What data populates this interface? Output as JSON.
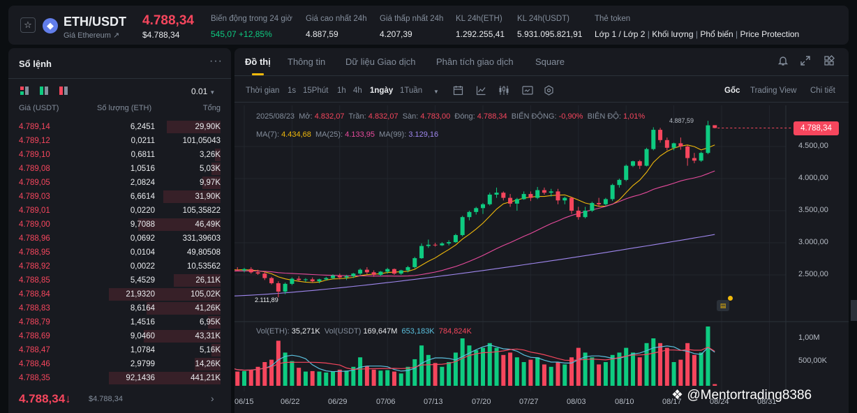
{
  "header": {
    "pair": "ETH/USDT",
    "subtitle": "Giá Ethereum ↗",
    "last_price": "4.788,34",
    "last_price_usd": "$4.788,34",
    "stats": [
      {
        "label": "Biến động trong 24 giờ",
        "value": "545,07 +12,85%",
        "up": true
      },
      {
        "label": "Giá cao nhất 24h",
        "value": "4.887,59"
      },
      {
        "label": "Giá thấp nhất 24h",
        "value": "4.207,39"
      },
      {
        "label": "KL 24h(ETH)",
        "value": "1.292.255,41"
      },
      {
        "label": "KL 24h(USDT)",
        "value": "5.931.095.821,91"
      }
    ],
    "tags_label": "Thẻ token",
    "tags": [
      "Lớp 1 / Lớp 2",
      "Khối lượng",
      "Phổ biến",
      "Price Protection"
    ]
  },
  "orderbook": {
    "title": "Sổ lệnh",
    "step": "0.01",
    "col_price": "Giá (USDT)",
    "col_qty": "Số lượng (ETH)",
    "col_total": "Tổng",
    "rows": [
      {
        "price": "4.789,14",
        "qty": "6,2451",
        "total": "29,90K",
        "depth": 0.48
      },
      {
        "price": "4.789,12",
        "qty": "0,0211",
        "total": "101,05043",
        "depth": 0.0
      },
      {
        "price": "4.789,10",
        "qty": "0,6811",
        "total": "3,26K",
        "depth": 0.05
      },
      {
        "price": "4.789,08",
        "qty": "1,0516",
        "total": "5,03K",
        "depth": 0.08
      },
      {
        "price": "4.789,05",
        "qty": "2,0824",
        "total": "9,97K",
        "depth": 0.16
      },
      {
        "price": "4.789,03",
        "qty": "6,6614",
        "total": "31,90K",
        "depth": 0.51
      },
      {
        "price": "4.789,01",
        "qty": "0,0220",
        "total": "105,35822",
        "depth": 0.0
      },
      {
        "price": "4.789,00",
        "qty": "9,7088",
        "total": "46,49K",
        "depth": 0.74
      },
      {
        "price": "4.788,96",
        "qty": "0,0692",
        "total": "331,39603",
        "depth": 0.0
      },
      {
        "price": "4.788,95",
        "qty": "0,0104",
        "total": "49,80508",
        "depth": 0.0
      },
      {
        "price": "4.788,92",
        "qty": "0,0022",
        "total": "10,53562",
        "depth": 0.0
      },
      {
        "price": "4.788,85",
        "qty": "5,4529",
        "total": "26,11K",
        "depth": 0.42
      },
      {
        "price": "4.788,84",
        "qty": "21,9320",
        "total": "105,02K",
        "depth": 1.0
      },
      {
        "price": "4.788,83",
        "qty": "8,6164",
        "total": "41,26K",
        "depth": 0.66
      },
      {
        "price": "4.788,79",
        "qty": "1,4516",
        "total": "6,95K",
        "depth": 0.11
      },
      {
        "price": "4.788,69",
        "qty": "9,0460",
        "total": "43,31K",
        "depth": 0.69
      },
      {
        "price": "4.788,47",
        "qty": "1,0784",
        "total": "5,16K",
        "depth": 0.08
      },
      {
        "price": "4.788,46",
        "qty": "2,9799",
        "total": "14,26K",
        "depth": 0.23
      },
      {
        "price": "4.788,35",
        "qty": "92,1436",
        "total": "441,21K",
        "depth": 1.0
      }
    ],
    "bottom_price": "4.788,34↓",
    "bottom_usd": "$4.788,34",
    "bottom_arrow": "›"
  },
  "tabs": [
    "Đồ thị",
    "Thông tin",
    "Dữ liệu Giao dịch",
    "Phân tích giao dịch",
    "Square"
  ],
  "toolbar": {
    "intervals": [
      "Thời gian",
      "1s",
      "15Phút",
      "1h",
      "4h",
      "1ngày",
      "1Tuần"
    ],
    "active_interval": "1ngày",
    "views": [
      "Gốc",
      "Trading View",
      "Chi tiết"
    ],
    "active_view": "Gốc"
  },
  "legend": {
    "date": "2025/08/23",
    "open_label": "Mở:",
    "open": "4.832,07",
    "high_label": "Trần:",
    "high": "4.832,07",
    "low_label": "Sàn:",
    "low": "4.783,00",
    "close_label": "Đóng:",
    "close": "4.788,34",
    "chg_label": "BIẾN ĐỘNG:",
    "chg": "-0,90%",
    "amp_label": "BIÊN ĐỘ:",
    "amp": "1,01%",
    "ma7_label": "MA(7):",
    "ma7": "4.434,68",
    "ma25_label": "MA(25):",
    "ma25": "4.133,95",
    "ma99_label": "MA(99):",
    "ma99": "3.129,16",
    "vol_label": "Vol(ETH):",
    "vol": "35,271K",
    "volusdt_label": "Vol(USDT)",
    "volusdt": "169,647M",
    "vma1": "653,183K",
    "vma2": "784,824K"
  },
  "price_tag": "4.788,34",
  "max_label": "4.887,59",
  "min_label": "2.111,89",
  "colors": {
    "up": "#0ecb81",
    "down": "#f6465d",
    "ma7": "#f0b90b",
    "ma25": "#e84b9d",
    "ma99": "#9f87ee",
    "accent": "#f0b90b",
    "volma1": "#5bc0de",
    "volma2": "#f6465d"
  },
  "watermark": "@Mentortrading8386",
  "chart_data": {
    "type": "candlestick",
    "y_ticks": [
      "4.500,00",
      "4.000,00",
      "3.500,00",
      "3.000,00",
      "2.500,00"
    ],
    "y_tick_values": [
      4500,
      4000,
      3500,
      3000,
      2500
    ],
    "vol_ticks": [
      "1,00M",
      "500,00K"
    ],
    "vol_tick_values": [
      1000000,
      500000
    ],
    "x_labels": [
      "06/15",
      "06/22",
      "06/29",
      "07/06",
      "07/13",
      "07/20",
      "07/27",
      "08/03",
      "08/10",
      "08/17",
      "08/24",
      "08/31"
    ],
    "start_date": "2025-06-13",
    "candles": [
      [
        2550,
        2600,
        2530,
        2580,
        380000
      ],
      [
        2580,
        2620,
        2560,
        2570,
        300000
      ],
      [
        2570,
        2610,
        2540,
        2590,
        310000
      ],
      [
        2590,
        2620,
        2520,
        2540,
        340000
      ],
      [
        2540,
        2580,
        2500,
        2520,
        400000
      ],
      [
        2520,
        2550,
        2420,
        2450,
        500000
      ],
      [
        2450,
        2470,
        2350,
        2370,
        550000
      ],
      [
        2370,
        2400,
        2150,
        2240,
        950000
      ],
      [
        2240,
        2380,
        2200,
        2360,
        700000
      ],
      [
        2360,
        2460,
        2340,
        2440,
        520000
      ],
      [
        2440,
        2480,
        2400,
        2420,
        380000
      ],
      [
        2420,
        2450,
        2390,
        2430,
        300000
      ],
      [
        2430,
        2460,
        2380,
        2400,
        310000
      ],
      [
        2400,
        2440,
        2370,
        2430,
        300000
      ],
      [
        2430,
        2470,
        2410,
        2450,
        280000
      ],
      [
        2450,
        2510,
        2430,
        2490,
        300000
      ],
      [
        2490,
        2520,
        2430,
        2460,
        340000
      ],
      [
        2460,
        2500,
        2420,
        2480,
        320000
      ],
      [
        2480,
        2530,
        2450,
        2520,
        400000
      ],
      [
        2520,
        2600,
        2500,
        2580,
        600000
      ],
      [
        2580,
        2620,
        2510,
        2540,
        420000
      ],
      [
        2540,
        2570,
        2470,
        2500,
        340000
      ],
      [
        2500,
        2560,
        2480,
        2550,
        320000
      ],
      [
        2550,
        2610,
        2520,
        2590,
        330000
      ],
      [
        2590,
        2600,
        2500,
        2520,
        300000
      ],
      [
        2520,
        2580,
        2500,
        2570,
        260000
      ],
      [
        2570,
        2640,
        2540,
        2620,
        400000
      ],
      [
        2620,
        2780,
        2600,
        2760,
        560000
      ],
      [
        2760,
        2990,
        2750,
        2950,
        850000
      ],
      [
        2950,
        3050,
        2920,
        2970,
        650000
      ],
      [
        2970,
        3000,
        2940,
        2960,
        480000
      ],
      [
        2960,
        3010,
        2950,
        2990,
        400000
      ],
      [
        2990,
        3040,
        2960,
        3010,
        500000
      ],
      [
        3010,
        3140,
        3000,
        3120,
        700000
      ],
      [
        3120,
        3420,
        3100,
        3400,
        1000000
      ],
      [
        3400,
        3500,
        3350,
        3480,
        850000
      ],
      [
        3480,
        3560,
        3440,
        3540,
        750000
      ],
      [
        3540,
        3620,
        3450,
        3600,
        800000
      ],
      [
        3600,
        3780,
        3580,
        3750,
        900000
      ],
      [
        3750,
        3860,
        3700,
        3780,
        800000
      ],
      [
        3780,
        3800,
        3660,
        3700,
        650000
      ],
      [
        3700,
        3760,
        3560,
        3610,
        700000
      ],
      [
        3610,
        3700,
        3500,
        3680,
        600000
      ],
      [
        3680,
        3800,
        3670,
        3760,
        500000
      ],
      [
        3760,
        3800,
        3650,
        3700,
        550000
      ],
      [
        3700,
        3870,
        3680,
        3820,
        600000
      ],
      [
        3820,
        3860,
        3750,
        3780,
        450000
      ],
      [
        3780,
        3840,
        3720,
        3800,
        400000
      ],
      [
        3800,
        3840,
        3600,
        3660,
        500000
      ],
      [
        3660,
        3720,
        3600,
        3700,
        450000
      ],
      [
        3700,
        3710,
        3450,
        3500,
        600000
      ],
      [
        3500,
        3560,
        3360,
        3400,
        800000
      ],
      [
        3400,
        3560,
        3380,
        3500,
        700000
      ],
      [
        3500,
        3640,
        3480,
        3620,
        600000
      ],
      [
        3620,
        3700,
        3560,
        3600,
        450000
      ],
      [
        3600,
        3700,
        3580,
        3680,
        500000
      ],
      [
        3680,
        3920,
        3650,
        3900,
        650000
      ],
      [
        3900,
        4000,
        3860,
        3980,
        700000
      ],
      [
        3980,
        4220,
        3960,
        4200,
        800000
      ],
      [
        4200,
        4280,
        4180,
        4270,
        700000
      ],
      [
        4270,
        4290,
        4150,
        4200,
        600000
      ],
      [
        4200,
        4480,
        4190,
        4460,
        900000
      ],
      [
        4460,
        4800,
        4440,
        4760,
        1000000
      ],
      [
        4760,
        4790,
        4560,
        4600,
        900000
      ],
      [
        4600,
        4640,
        4440,
        4480,
        800000
      ],
      [
        4480,
        4560,
        4440,
        4550,
        500000
      ],
      [
        4550,
        4640,
        4450,
        4500,
        550000
      ],
      [
        4500,
        4520,
        4200,
        4320,
        900000
      ],
      [
        4320,
        4400,
        4240,
        4280,
        650000
      ],
      [
        4280,
        4420,
        4260,
        4400,
        700000
      ],
      [
        4400,
        4900,
        4380,
        4830,
        1250000
      ],
      [
        4832.07,
        4832.07,
        4783.0,
        4788.34,
        35271
      ]
    ]
  }
}
